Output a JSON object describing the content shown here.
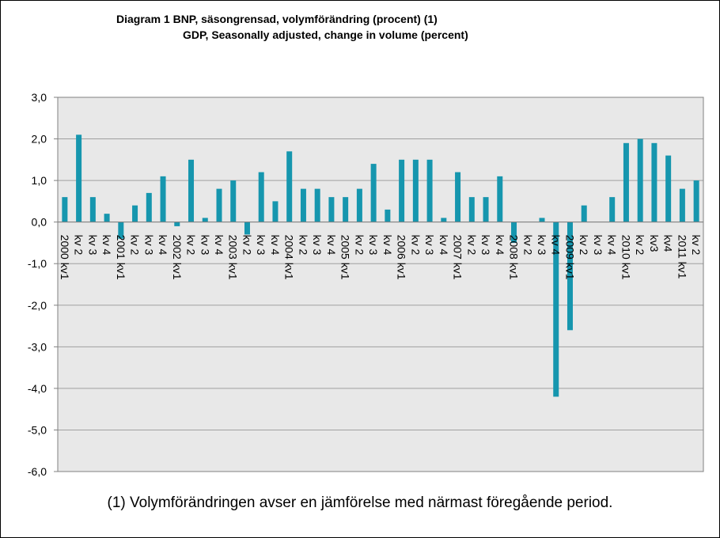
{
  "chart_data": {
    "type": "bar",
    "title": "Diagram 1 BNP, säsongrensad,  volymförändring  (procent) (1)",
    "subtitle": "GDP, Seasonally adjusted, change in volume (percent)",
    "footnote": "(1) Volymförändringen avser en jämförelse med närmast föregående period.",
    "ylim": [
      -6,
      3
    ],
    "yticks": [
      "3,0",
      "2,0",
      "1,0",
      "0,0",
      "-1,0",
      "-2,0",
      "-3,0",
      "-4,0",
      "-5,0",
      "-6,0"
    ],
    "grid": true,
    "bar_color": "#1696AE",
    "plot_background": "#E8E8E8",
    "categories": [
      "2000 kv1",
      "kv 2",
      "kv 3",
      "kv 4",
      "2001 kv1",
      "kv 2",
      "kv 3",
      "kv 4",
      "2002 kv1",
      "kv 2",
      "kv 3",
      "kv 4",
      "2003 kv1",
      "kv 2",
      "kv 3",
      "kv 4",
      "2004 kv1",
      "kv 2",
      "kv 3",
      "kv 4",
      "2005 kv1",
      "kv 2",
      "kv 3",
      "kv 4",
      "2006 kv1",
      "kv 2",
      "kv 3",
      "kv 4",
      "2007 kv1",
      "kv 2",
      "kv 3",
      "kv 4",
      "2008 kv1",
      "kv 2",
      "kv 3",
      "kv 4",
      "2009 kv1",
      "kv 2",
      "kv 3",
      "kv 4",
      "2010 kv1",
      "kv 2",
      "kv3",
      "kv4",
      "2011 kv1",
      "kv 2"
    ],
    "values": [
      0.6,
      2.1,
      0.6,
      0.2,
      -0.4,
      0.4,
      0.7,
      1.1,
      -0.1,
      1.5,
      0.1,
      0.8,
      1.0,
      -0.3,
      1.2,
      0.5,
      1.7,
      0.8,
      0.8,
      0.6,
      0.6,
      0.8,
      1.4,
      0.3,
      1.5,
      1.5,
      1.5,
      0.1,
      1.2,
      0.6,
      0.6,
      1.1,
      -0.5,
      0.0,
      0.1,
      -4.2,
      -2.6,
      0.4,
      0.0,
      0.6,
      1.9,
      2.0,
      1.9,
      1.6,
      0.8,
      1.0
    ]
  }
}
